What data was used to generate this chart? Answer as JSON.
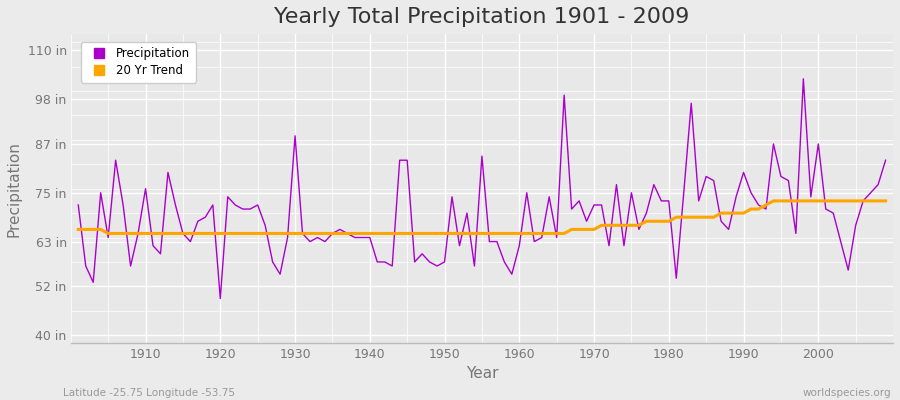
{
  "title": "Yearly Total Precipitation 1901 - 2009",
  "xlabel": "Year",
  "ylabel": "Precipitation",
  "years": [
    1901,
    1902,
    1903,
    1904,
    1905,
    1906,
    1907,
    1908,
    1909,
    1910,
    1911,
    1912,
    1913,
    1914,
    1915,
    1916,
    1917,
    1918,
    1919,
    1920,
    1921,
    1922,
    1923,
    1924,
    1925,
    1926,
    1927,
    1928,
    1929,
    1930,
    1931,
    1932,
    1933,
    1934,
    1935,
    1936,
    1937,
    1938,
    1939,
    1940,
    1941,
    1942,
    1943,
    1944,
    1945,
    1946,
    1947,
    1948,
    1949,
    1950,
    1951,
    1952,
    1953,
    1954,
    1955,
    1956,
    1957,
    1958,
    1959,
    1960,
    1961,
    1962,
    1963,
    1964,
    1965,
    1966,
    1967,
    1968,
    1969,
    1970,
    1971,
    1972,
    1973,
    1974,
    1975,
    1976,
    1977,
    1978,
    1979,
    1980,
    1981,
    1982,
    1983,
    1984,
    1985,
    1986,
    1987,
    1988,
    1989,
    1990,
    1991,
    1992,
    1993,
    1994,
    1995,
    1996,
    1997,
    1998,
    1999,
    2000,
    2001,
    2002,
    2003,
    2004,
    2005,
    2006,
    2007,
    2008,
    2009
  ],
  "precip": [
    72,
    57,
    53,
    75,
    64,
    83,
    72,
    57,
    65,
    76,
    62,
    60,
    80,
    72,
    65,
    63,
    68,
    69,
    72,
    49,
    74,
    72,
    71,
    71,
    72,
    67,
    58,
    55,
    64,
    89,
    65,
    63,
    64,
    63,
    65,
    66,
    65,
    64,
    64,
    64,
    58,
    58,
    57,
    83,
    83,
    58,
    60,
    58,
    57,
    58,
    74,
    62,
    70,
    57,
    84,
    63,
    63,
    58,
    55,
    62,
    75,
    63,
    64,
    74,
    64,
    99,
    71,
    73,
    68,
    72,
    72,
    62,
    77,
    62,
    75,
    66,
    70,
    77,
    73,
    73,
    54,
    75,
    97,
    73,
    79,
    78,
    68,
    66,
    74,
    80,
    75,
    72,
    71,
    87,
    79,
    78,
    65,
    103,
    74,
    87,
    71,
    70,
    63,
    56,
    67,
    73,
    75,
    77,
    83
  ],
  "trend": [
    66,
    66,
    66,
    66,
    65,
    65,
    65,
    65,
    65,
    65,
    65,
    65,
    65,
    65,
    65,
    65,
    65,
    65,
    65,
    65,
    65,
    65,
    65,
    65,
    65,
    65,
    65,
    65,
    65,
    65,
    65,
    65,
    65,
    65,
    65,
    65,
    65,
    65,
    65,
    65,
    65,
    65,
    65,
    65,
    65,
    65,
    65,
    65,
    65,
    65,
    65,
    65,
    65,
    65,
    65,
    65,
    65,
    65,
    65,
    65,
    65,
    65,
    65,
    65,
    65,
    65,
    66,
    66,
    66,
    66,
    67,
    67,
    67,
    67,
    67,
    67,
    68,
    68,
    68,
    68,
    69,
    69,
    69,
    69,
    69,
    69,
    70,
    70,
    70,
    70,
    71,
    71,
    72,
    73,
    73,
    73,
    73,
    73,
    73,
    73,
    73,
    73,
    73,
    73,
    73,
    73,
    73,
    73,
    73
  ],
  "precip_color": "#AA00CC",
  "trend_color": "#FFA500",
  "background_color": "#EBEBEB",
  "plot_bg_color": "#E8E8E8",
  "grid_color": "#FFFFFF",
  "yticks": [
    40,
    52,
    63,
    75,
    87,
    98,
    110
  ],
  "ytick_labels": [
    "40 in",
    "52 in",
    "63 in",
    "75 in",
    "87 in",
    "98 in",
    "110 in"
  ],
  "xticks": [
    1910,
    1920,
    1930,
    1940,
    1950,
    1960,
    1970,
    1980,
    1990,
    2000
  ],
  "ylim": [
    38,
    114
  ],
  "xlim": [
    1900,
    2010
  ],
  "footnote_left": "Latitude -25.75 Longitude -53.75",
  "footnote_right": "worldspecies.org",
  "legend_labels": [
    "Precipitation",
    "20 Yr Trend"
  ],
  "title_fontsize": 16,
  "axis_fontsize": 9,
  "label_fontsize": 11,
  "tick_color": "#777777"
}
